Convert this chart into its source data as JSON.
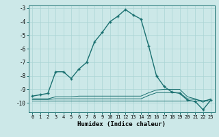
{
  "xlabel": "Humidex (Indice chaleur)",
  "x_values": [
    0,
    1,
    2,
    3,
    4,
    5,
    6,
    7,
    8,
    9,
    10,
    11,
    12,
    13,
    14,
    15,
    16,
    17,
    18,
    19,
    20,
    21,
    22,
    23
  ],
  "line1": [
    -9.5,
    -9.4,
    -9.3,
    -7.7,
    -7.7,
    -8.2,
    -7.5,
    -7.0,
    -5.5,
    -4.8,
    -4.0,
    -3.6,
    -3.1,
    -3.5,
    -3.8,
    -5.8,
    -8.0,
    -8.8,
    -9.2,
    -9.3,
    -9.8,
    -9.9,
    -10.5,
    -9.8
  ],
  "line2": [
    -9.85,
    -9.85,
    -9.85,
    -9.85,
    -9.85,
    -9.85,
    -9.85,
    -9.85,
    -9.85,
    -9.85,
    -9.85,
    -9.85,
    -9.85,
    -9.85,
    -9.85,
    -9.85,
    -9.85,
    -9.85,
    -9.85,
    -9.85,
    -9.85,
    -9.85,
    -9.85,
    -9.85
  ],
  "line3": [
    -9.75,
    -9.75,
    -9.75,
    -9.7,
    -9.7,
    -9.7,
    -9.7,
    -9.7,
    -9.7,
    -9.7,
    -9.7,
    -9.7,
    -9.7,
    -9.7,
    -9.7,
    -9.45,
    -9.25,
    -9.25,
    -9.25,
    -9.25,
    -9.7,
    -9.75,
    -9.85,
    -9.75
  ],
  "line4": [
    -9.7,
    -9.7,
    -9.7,
    -9.55,
    -9.55,
    -9.55,
    -9.5,
    -9.5,
    -9.5,
    -9.5,
    -9.5,
    -9.5,
    -9.5,
    -9.5,
    -9.5,
    -9.25,
    -9.05,
    -9.0,
    -9.0,
    -9.0,
    -9.55,
    -9.7,
    -9.95,
    -9.7
  ],
  "ylim": [
    -10.7,
    -2.8
  ],
  "xlim": [
    -0.5,
    23.5
  ],
  "yticks": [
    -3,
    -4,
    -5,
    -6,
    -7,
    -8,
    -9,
    -10
  ],
  "xticks": [
    0,
    1,
    2,
    3,
    4,
    5,
    6,
    7,
    8,
    9,
    10,
    11,
    12,
    13,
    14,
    15,
    16,
    17,
    18,
    19,
    20,
    21,
    22,
    23
  ],
  "bg_color": "#cce8e8",
  "grid_color": "#aad4d4",
  "line_color": "#1a7070"
}
